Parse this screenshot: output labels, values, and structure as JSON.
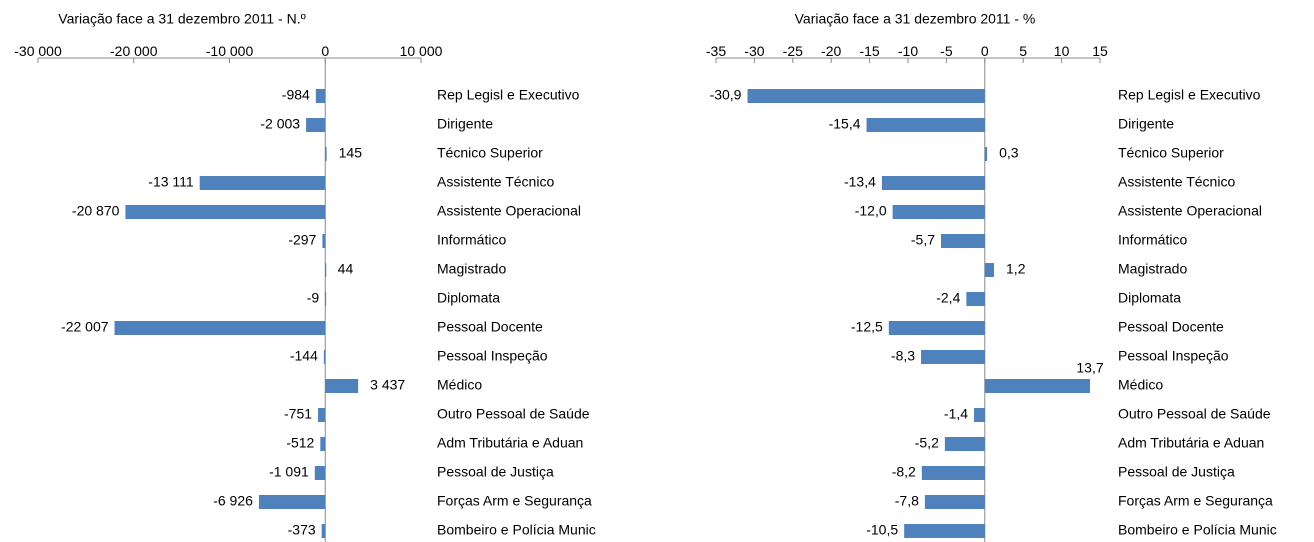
{
  "chart_data": [
    {
      "type": "bar",
      "orientation": "horizontal",
      "title": "Variação face a 31 dezembro 2011 - N.º",
      "categories": [
        "Rep Legisl e Executivo",
        "Dirigente",
        "Técnico Superior",
        "Assistente Técnico",
        "Assistente Operacional",
        "Informático",
        "Magistrado",
        "Diplomata",
        "Pessoal Docente",
        "Pessoal Inspeção",
        "Médico",
        "Outro Pessoal de Saúde",
        "Adm Tributária e Aduan",
        "Pessoal de Justiça",
        "Forças Arm e Segurança",
        "Bombeiro e Polícia Munic"
      ],
      "values": [
        -984,
        -2003,
        145,
        -13111,
        -20870,
        -297,
        44,
        -9,
        -22007,
        -144,
        3437,
        -751,
        -512,
        -1091,
        -6926,
        -373
      ],
      "value_labels": [
        "-984",
        "-2 003",
        "145",
        "-13 111",
        "-20 870",
        "-297",
        "44",
        "-9",
        "-22 007",
        "-144",
        "3 437",
        "-751",
        "-512",
        "-1 091",
        "-6 926",
        "-373"
      ],
      "color": "#4f81bd",
      "xlim": [
        -30000,
        10000
      ],
      "xticks": [
        {
          "value": -30000,
          "label": "-30 000"
        },
        {
          "value": -20000,
          "label": "-20 000"
        },
        {
          "value": -10000,
          "label": "-10 000"
        },
        0,
        {
          "value": 10000,
          "label": "10 000"
        }
      ]
    },
    {
      "type": "bar",
      "orientation": "horizontal",
      "title": "Variação face a 31 dezembro 2011  -  %",
      "categories": [
        "Rep Legisl e Executivo",
        "Dirigente",
        "Técnico Superior",
        "Assistente Técnico",
        "Assistente Operacional",
        "Informático",
        "Magistrado",
        "Diplomata",
        "Pessoal Docente",
        "Pessoal Inspeção",
        "Médico",
        "Outro Pessoal de Saúde",
        "Adm Tributária e Aduan",
        "Pessoal de Justiça",
        "Forças Arm e Segurança",
        "Bombeiro e Polícia Munic"
      ],
      "values": [
        -30.9,
        -15.4,
        0.3,
        -13.4,
        -12.0,
        -5.7,
        1.2,
        -2.4,
        -12.5,
        -8.3,
        13.7,
        -1.4,
        -5.2,
        -8.2,
        -7.8,
        -10.5
      ],
      "value_labels": [
        "-30,9",
        "-15,4",
        "0,3",
        "-13,4",
        "-12,0",
        "-5,7",
        "1,2",
        "-2,4",
        "-12,5",
        "-8,3",
        "13,7",
        "-1,4",
        "-5,2",
        "-8,2",
        "-7,8",
        "-10,5"
      ],
      "color": "#4f81bd",
      "xlim": [
        -35,
        15
      ],
      "xticks": [
        -35,
        -30,
        -25,
        -20,
        -15,
        -10,
        -5,
        0,
        5,
        10,
        15
      ]
    }
  ]
}
